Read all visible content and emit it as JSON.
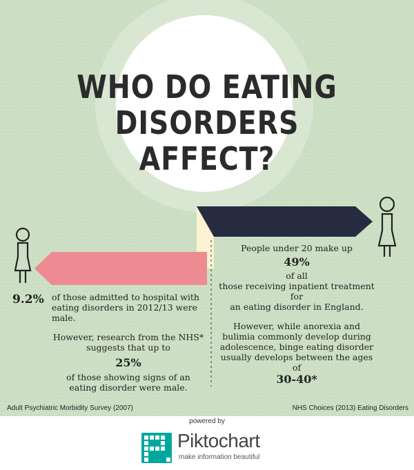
{
  "title": {
    "line1": "WHO DO EATING",
    "line2": "DISORDERS AFFECT?"
  },
  "left": {
    "stat": "9.2%",
    "stat_text": "of those admitted to hospital with eating disorders in 2012/13 were male.",
    "research_text": "However, research from the NHS* suggests that up to",
    "research_stat": "25%",
    "research_tail": "of those showing signs of an eating disorder were male."
  },
  "right": {
    "intro": "People under 20 make up",
    "stat": "49%",
    "line_a": "of all",
    "line_b": "those receiving inpatient treatment",
    "line_c": "for",
    "line_d": "an eating disorder in England.",
    "para2": "However, while anorexia and bulimia commonly develop during adolescence, binge eating disorder usually develops between the ages of",
    "age_stat": "30-40*"
  },
  "sources": {
    "left": "Adult Psychiatric Morbidity Survey (2007)",
    "right": "NHS Choices (2013) Eating Disorders"
  },
  "footer": {
    "powered": "powered by",
    "brand": "Piktochart",
    "tagline": "make information beautiful"
  },
  "colors": {
    "background": "#cfe1c8",
    "pink_arrow": "#ee8a91",
    "navy_arrow": "#262b40",
    "fold": "#fbf3d2",
    "piktochart_teal": "#00a79d"
  },
  "icons": [
    "female-figure-icon",
    "female-figure-icon",
    "piktochart-logo-icon"
  ]
}
